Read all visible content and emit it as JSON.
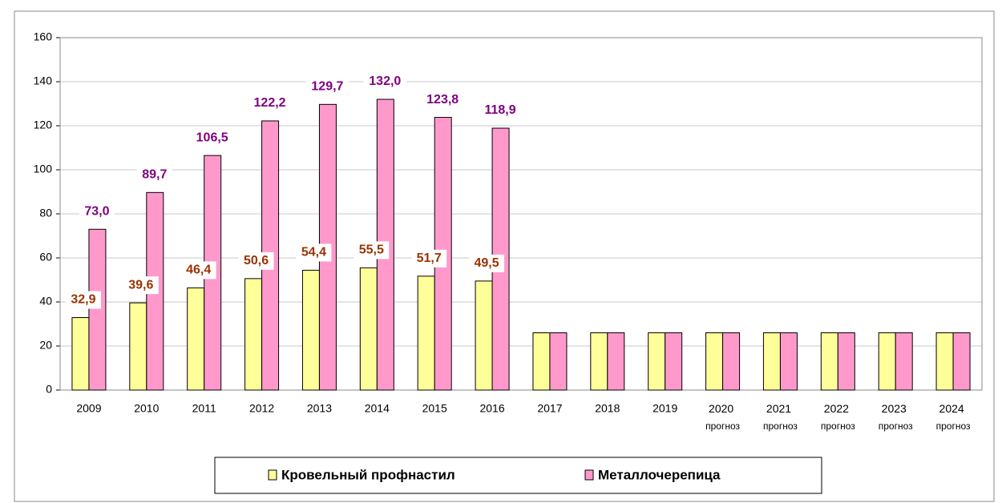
{
  "chart_data": {
    "type": "bar",
    "categories": [
      "2009",
      "2010",
      "2011",
      "2012",
      "2013",
      "2014",
      "2015",
      "2016",
      "2017",
      "2018",
      "2019",
      "2020 прогноз",
      "2021 прогноз",
      "2022 прогноз",
      "2023 прогноз",
      "2024 прогноз"
    ],
    "series": [
      {
        "name": "Кровельный профнастил",
        "color": "#ffff99",
        "label_color": "#993300",
        "values": [
          32.9,
          39.6,
          46.4,
          50.6,
          54.4,
          55.5,
          51.7,
          49.5,
          26,
          26,
          26,
          26,
          26,
          26,
          26,
          26
        ],
        "value_labels": [
          "32,9",
          "39,6",
          "46,4",
          "50,6",
          "54,4",
          "55,5",
          "51,7",
          "49,5",
          null,
          null,
          null,
          null,
          null,
          null,
          null,
          null
        ]
      },
      {
        "name": "Металлочерепица",
        "color": "#ff99cc",
        "label_color": "#800080",
        "values": [
          73.0,
          89.7,
          106.5,
          122.2,
          129.7,
          132.0,
          123.8,
          118.9,
          26,
          26,
          26,
          26,
          26,
          26,
          26,
          26
        ],
        "value_labels": [
          "73,0",
          "89,7",
          "106,5",
          "122,2",
          "129,7",
          "132,0",
          "123,8",
          "118,9",
          null,
          null,
          null,
          null,
          null,
          null,
          null,
          null
        ]
      }
    ],
    "ylim": [
      0,
      160
    ],
    "yticks": [
      0,
      20,
      40,
      60,
      80,
      100,
      120,
      140,
      160
    ],
    "grid": true,
    "legend": "bottom"
  }
}
